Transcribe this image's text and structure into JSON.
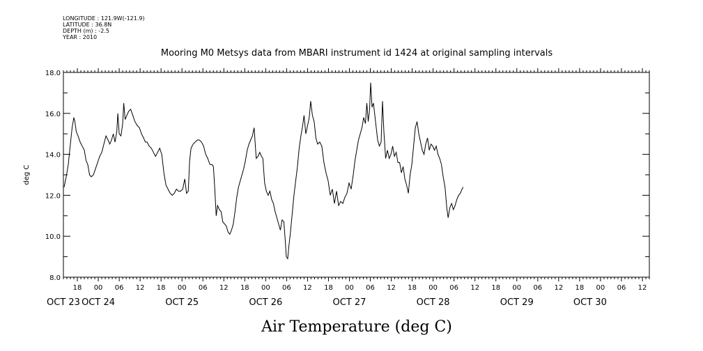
{
  "header": {
    "longitude": "LONGITUDE : 121.9W(-121.9)",
    "latitude": "LATITUDE : 36.8N",
    "depth": "DEPTH (m) : -2.5",
    "year": "YEAR : 2010"
  },
  "chart_data": {
    "type": "line",
    "title": "Mooring M0 Metsys data from MBARI instrument id 1424 at original sampling intervals",
    "xlabel": "Air Temperature (deg C)",
    "ylabel": "deg C",
    "ylim": [
      8,
      18
    ],
    "yticks": [
      "8.0",
      "10.0",
      "12.0",
      "14.0",
      "16.0",
      "18.0"
    ],
    "x_units": "hours since OCT 23 00:00 2010",
    "xlim": [
      14,
      182
    ],
    "hour_ticks": [
      {
        "x": 18,
        "label": "18"
      },
      {
        "x": 24,
        "label": "00"
      },
      {
        "x": 30,
        "label": "06"
      },
      {
        "x": 36,
        "label": "12"
      },
      {
        "x": 42,
        "label": "18"
      },
      {
        "x": 48,
        "label": "00"
      },
      {
        "x": 54,
        "label": "06"
      },
      {
        "x": 60,
        "label": "12"
      },
      {
        "x": 66,
        "label": "18"
      },
      {
        "x": 72,
        "label": "00"
      },
      {
        "x": 78,
        "label": "06"
      },
      {
        "x": 84,
        "label": "12"
      },
      {
        "x": 90,
        "label": "18"
      },
      {
        "x": 96,
        "label": "00"
      },
      {
        "x": 102,
        "label": "06"
      },
      {
        "x": 108,
        "label": "12"
      },
      {
        "x": 114,
        "label": "18"
      },
      {
        "x": 120,
        "label": "00"
      },
      {
        "x": 126,
        "label": "06"
      },
      {
        "x": 132,
        "label": "12"
      },
      {
        "x": 138,
        "label": "18"
      },
      {
        "x": 144,
        "label": "00"
      },
      {
        "x": 150,
        "label": "06"
      },
      {
        "x": 156,
        "label": "12"
      },
      {
        "x": 162,
        "label": "18"
      },
      {
        "x": 168,
        "label": "00"
      },
      {
        "x": 174,
        "label": "06"
      },
      {
        "x": 180,
        "label": "12"
      }
    ],
    "date_labels": [
      {
        "x": 14,
        "label": "OCT 23"
      },
      {
        "x": 24,
        "label": "OCT 24"
      },
      {
        "x": 48,
        "label": "OCT 25"
      },
      {
        "x": 72,
        "label": "OCT 26"
      },
      {
        "x": 96,
        "label": "OCT 27"
      },
      {
        "x": 120,
        "label": "OCT 28"
      },
      {
        "x": 144,
        "label": "OCT 29"
      },
      {
        "x": 165,
        "label": "OCT 30"
      }
    ],
    "series": [
      {
        "values": [
          [
            14.2,
            12.4
          ],
          [
            14.8,
            12.9
          ],
          [
            15.4,
            13.5
          ],
          [
            16.0,
            14.5
          ],
          [
            16.5,
            15.3
          ],
          [
            17.0,
            15.8
          ],
          [
            17.3,
            15.6
          ],
          [
            17.7,
            15.1
          ],
          [
            18.2,
            14.9
          ],
          [
            18.8,
            14.6
          ],
          [
            19.4,
            14.4
          ],
          [
            20.0,
            14.2
          ],
          [
            20.5,
            13.7
          ],
          [
            21.0,
            13.5
          ],
          [
            21.5,
            13.0
          ],
          [
            22.0,
            12.9
          ],
          [
            22.6,
            13.0
          ],
          [
            23.2,
            13.3
          ],
          [
            23.8,
            13.6
          ],
          [
            24.4,
            13.9
          ],
          [
            25.0,
            14.1
          ],
          [
            25.6,
            14.5
          ],
          [
            26.2,
            14.9
          ],
          [
            26.8,
            14.7
          ],
          [
            27.3,
            14.5
          ],
          [
            27.8,
            14.7
          ],
          [
            28.3,
            15.0
          ],
          [
            28.8,
            14.6
          ],
          [
            29.3,
            15.1
          ],
          [
            29.6,
            16.0
          ],
          [
            30.0,
            15.0
          ],
          [
            30.5,
            14.9
          ],
          [
            31.0,
            15.5
          ],
          [
            31.3,
            16.5
          ],
          [
            31.7,
            15.7
          ],
          [
            32.2,
            15.9
          ],
          [
            32.7,
            16.1
          ],
          [
            33.3,
            16.2
          ],
          [
            33.9,
            15.9
          ],
          [
            34.5,
            15.6
          ],
          [
            35.2,
            15.4
          ],
          [
            35.8,
            15.3
          ],
          [
            36.4,
            15.0
          ],
          [
            37.0,
            14.8
          ],
          [
            37.5,
            14.6
          ],
          [
            38.0,
            14.6
          ],
          [
            38.6,
            14.4
          ],
          [
            39.2,
            14.3
          ],
          [
            39.8,
            14.1
          ],
          [
            40.4,
            13.9
          ],
          [
            41.0,
            14.1
          ],
          [
            41.6,
            14.3
          ],
          [
            42.2,
            14.0
          ],
          [
            42.8,
            13.1
          ],
          [
            43.4,
            12.5
          ],
          [
            44.0,
            12.3
          ],
          [
            44.6,
            12.1
          ],
          [
            45.2,
            12.0
          ],
          [
            45.8,
            12.1
          ],
          [
            46.4,
            12.3
          ],
          [
            47.0,
            12.2
          ],
          [
            47.6,
            12.2
          ],
          [
            48.2,
            12.3
          ],
          [
            48.8,
            12.8
          ],
          [
            49.3,
            12.1
          ],
          [
            49.8,
            12.2
          ],
          [
            50.2,
            13.7
          ],
          [
            50.6,
            14.3
          ],
          [
            51.2,
            14.5
          ],
          [
            51.8,
            14.6
          ],
          [
            52.4,
            14.7
          ],
          [
            53.0,
            14.7
          ],
          [
            53.6,
            14.6
          ],
          [
            54.2,
            14.4
          ],
          [
            54.8,
            14.0
          ],
          [
            55.4,
            13.8
          ],
          [
            56.0,
            13.5
          ],
          [
            56.6,
            13.5
          ],
          [
            57.0,
            13.4
          ],
          [
            57.4,
            12.3
          ],
          [
            57.8,
            11.0
          ],
          [
            58.2,
            11.5
          ],
          [
            58.7,
            11.3
          ],
          [
            59.2,
            11.2
          ],
          [
            59.7,
            10.7
          ],
          [
            60.2,
            10.6
          ],
          [
            60.7,
            10.5
          ],
          [
            61.2,
            10.2
          ],
          [
            61.7,
            10.1
          ],
          [
            62.2,
            10.3
          ],
          [
            62.7,
            10.6
          ],
          [
            63.2,
            11.2
          ],
          [
            63.7,
            11.9
          ],
          [
            64.2,
            12.4
          ],
          [
            64.7,
            12.7
          ],
          [
            65.2,
            13.0
          ],
          [
            65.7,
            13.3
          ],
          [
            66.2,
            13.7
          ],
          [
            66.7,
            14.2
          ],
          [
            67.2,
            14.5
          ],
          [
            67.7,
            14.7
          ],
          [
            68.2,
            14.9
          ],
          [
            68.7,
            15.3
          ],
          [
            69.0,
            14.5
          ],
          [
            69.3,
            13.8
          ],
          [
            69.8,
            13.9
          ],
          [
            70.3,
            14.1
          ],
          [
            70.8,
            13.9
          ],
          [
            71.2,
            13.8
          ],
          [
            71.7,
            12.6
          ],
          [
            72.2,
            12.2
          ],
          [
            72.7,
            12.0
          ],
          [
            73.2,
            12.2
          ],
          [
            73.7,
            11.8
          ],
          [
            74.2,
            11.6
          ],
          [
            74.7,
            11.2
          ],
          [
            75.2,
            10.9
          ],
          [
            75.7,
            10.6
          ],
          [
            76.2,
            10.3
          ],
          [
            76.7,
            10.8
          ],
          [
            77.2,
            10.7
          ],
          [
            77.6,
            9.8
          ],
          [
            77.9,
            9.0
          ],
          [
            78.3,
            8.9
          ],
          [
            78.7,
            9.6
          ],
          [
            79.1,
            10.2
          ],
          [
            79.6,
            11.1
          ],
          [
            80.1,
            12.0
          ],
          [
            80.6,
            12.7
          ],
          [
            81.1,
            13.4
          ],
          [
            81.6,
            14.3
          ],
          [
            82.1,
            14.9
          ],
          [
            82.6,
            15.4
          ],
          [
            83.0,
            15.9
          ],
          [
            83.5,
            15.0
          ],
          [
            84.0,
            15.4
          ],
          [
            84.5,
            15.8
          ],
          [
            84.9,
            16.6
          ],
          [
            85.4,
            15.9
          ],
          [
            85.9,
            15.6
          ],
          [
            86.4,
            14.8
          ],
          [
            86.9,
            14.5
          ],
          [
            87.5,
            14.6
          ],
          [
            88.1,
            14.4
          ],
          [
            88.7,
            13.6
          ],
          [
            89.3,
            13.1
          ],
          [
            89.9,
            12.7
          ],
          [
            90.5,
            12.0
          ],
          [
            91.1,
            12.3
          ],
          [
            91.7,
            11.6
          ],
          [
            92.3,
            12.2
          ],
          [
            92.9,
            11.5
          ],
          [
            93.5,
            11.7
          ],
          [
            94.1,
            11.6
          ],
          [
            94.7,
            11.9
          ],
          [
            95.3,
            12.1
          ],
          [
            95.9,
            12.6
          ],
          [
            96.5,
            12.3
          ],
          [
            97.1,
            13.0
          ],
          [
            97.6,
            13.7
          ],
          [
            98.1,
            14.2
          ],
          [
            98.6,
            14.7
          ],
          [
            99.1,
            15.0
          ],
          [
            99.6,
            15.3
          ],
          [
            100.1,
            15.8
          ],
          [
            100.6,
            15.5
          ],
          [
            101.0,
            16.5
          ],
          [
            101.4,
            15.6
          ],
          [
            101.8,
            16.2
          ],
          [
            102.1,
            17.5
          ],
          [
            102.5,
            16.3
          ],
          [
            102.9,
            16.5
          ],
          [
            103.3,
            15.9
          ],
          [
            103.7,
            15.3
          ],
          [
            104.1,
            14.7
          ],
          [
            104.6,
            14.4
          ],
          [
            105.1,
            14.6
          ],
          [
            105.5,
            16.6
          ],
          [
            105.9,
            15.1
          ],
          [
            106.4,
            13.8
          ],
          [
            106.9,
            14.2
          ],
          [
            107.4,
            13.8
          ],
          [
            107.9,
            14.0
          ],
          [
            108.4,
            14.4
          ],
          [
            108.9,
            13.9
          ],
          [
            109.4,
            14.1
          ],
          [
            109.9,
            13.6
          ],
          [
            110.4,
            13.6
          ],
          [
            110.9,
            13.1
          ],
          [
            111.4,
            13.4
          ],
          [
            111.9,
            12.8
          ],
          [
            112.4,
            12.5
          ],
          [
            112.9,
            12.1
          ],
          [
            113.4,
            13.0
          ],
          [
            113.9,
            13.5
          ],
          [
            114.4,
            14.4
          ],
          [
            114.9,
            15.3
          ],
          [
            115.4,
            15.6
          ],
          [
            115.9,
            15.0
          ],
          [
            116.4,
            14.6
          ],
          [
            116.9,
            14.2
          ],
          [
            117.4,
            14.0
          ],
          [
            117.9,
            14.5
          ],
          [
            118.4,
            14.8
          ],
          [
            118.9,
            14.2
          ],
          [
            119.4,
            14.5
          ],
          [
            119.9,
            14.4
          ],
          [
            120.4,
            14.2
          ],
          [
            120.9,
            14.4
          ],
          [
            121.4,
            14.0
          ],
          [
            121.9,
            13.8
          ],
          [
            122.4,
            13.5
          ],
          [
            122.9,
            12.9
          ],
          [
            123.4,
            12.4
          ],
          [
            123.9,
            11.4
          ],
          [
            124.3,
            10.9
          ],
          [
            124.8,
            11.4
          ],
          [
            125.3,
            11.6
          ],
          [
            125.8,
            11.3
          ],
          [
            126.3,
            11.5
          ],
          [
            126.8,
            11.8
          ],
          [
            127.3,
            12.0
          ],
          [
            127.8,
            12.1
          ],
          [
            128.3,
            12.3
          ],
          [
            128.6,
            12.4
          ]
        ]
      }
    ]
  }
}
